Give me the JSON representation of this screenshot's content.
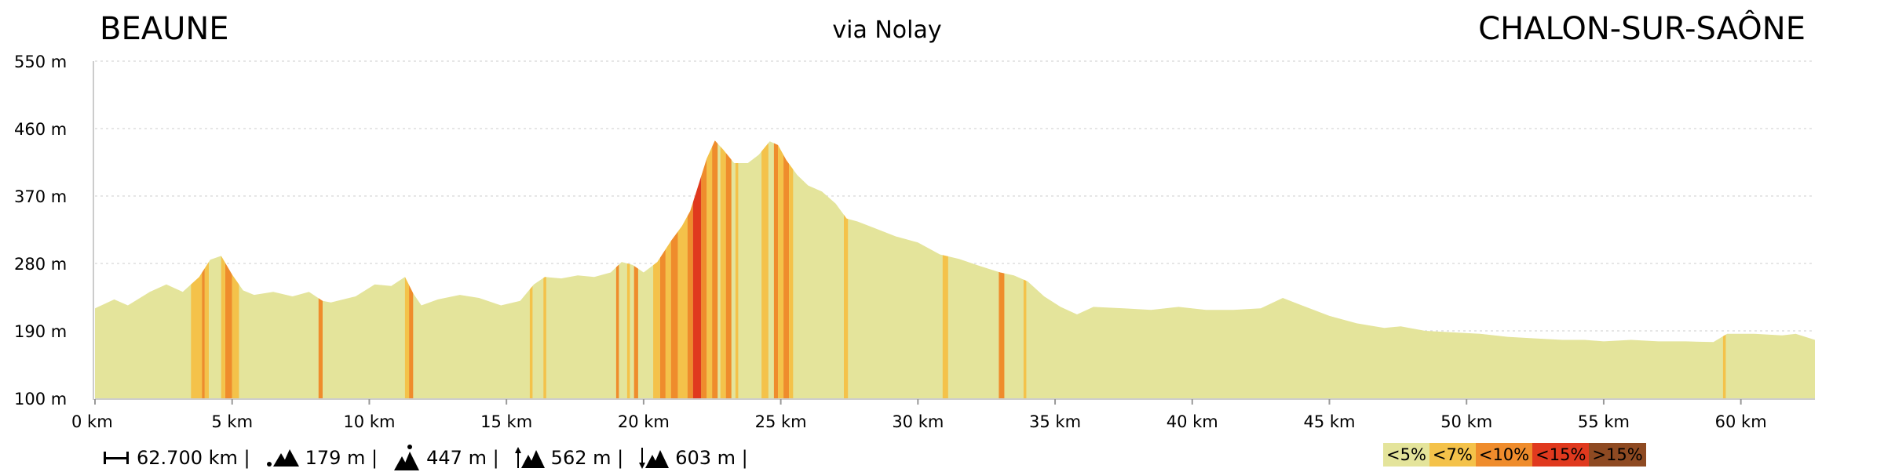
{
  "header": {
    "start_label": "BEAUNE",
    "via_label": "via Nolay",
    "end_label": "CHALON-SUR-SAÔNE"
  },
  "stats": {
    "distance": "62.700 km |",
    "min_altitude": "179 m |",
    "max_altitude": "447 m |",
    "ascent": "562 m |",
    "descent": "603 m |",
    "icons": [
      "distance-icon",
      "min-altitude-icon",
      "max-altitude-icon",
      "ascent-icon",
      "descent-icon"
    ]
  },
  "legend": {
    "items": [
      {
        "label": "<5%",
        "color": "#e4e49b"
      },
      {
        "label": "<7%",
        "color": "#f4c24a"
      },
      {
        "label": "<10%",
        "color": "#ef8c2c"
      },
      {
        "label": "<15%",
        "color": "#e0391e"
      },
      {
        "label": ">15%",
        "color": "#8e4a22"
      }
    ]
  },
  "chart_data": {
    "type": "area",
    "title": "",
    "xlabel": "",
    "ylabel": "",
    "xlim": [
      0,
      62.7
    ],
    "ylim": [
      100,
      550
    ],
    "x_ticks": [
      0,
      5,
      10,
      15,
      20,
      25,
      30,
      35,
      40,
      45,
      50,
      55,
      60
    ],
    "x_tick_labels": [
      "0 km",
      "5 km",
      "10 km",
      "15 km",
      "20 km",
      "25 km",
      "30 km",
      "35 km",
      "40 km",
      "45 km",
      "50 km",
      "55 km",
      "60 km"
    ],
    "y_ticks": [
      100,
      190,
      280,
      370,
      460,
      550
    ],
    "y_tick_labels": [
      "100 m",
      "190 m",
      "280 m",
      "370 m",
      "460 m",
      "550 m"
    ],
    "grid": true,
    "base_color": "#e4e49b",
    "profile": {
      "x": [
        0,
        0.7,
        1.2,
        2.0,
        2.6,
        3.2,
        3.8,
        4.2,
        4.6,
        5.0,
        5.4,
        5.8,
        6.5,
        7.2,
        7.8,
        8.3,
        8.6,
        9.5,
        10.2,
        10.8,
        11.3,
        11.6,
        11.9,
        12.5,
        13.3,
        14.0,
        14.8,
        15.5,
        16.0,
        16.4,
        17.0,
        17.6,
        18.2,
        18.8,
        19.2,
        19.6,
        20.0,
        20.5,
        21.0,
        21.4,
        21.7,
        22.0,
        22.3,
        22.6,
        22.9,
        23.3,
        23.8,
        24.2,
        24.6,
        24.9,
        25.2,
        25.6,
        26.0,
        26.5,
        27.0,
        27.4,
        27.8,
        28.5,
        29.2,
        30.0,
        30.8,
        31.5,
        32.3,
        33.0,
        33.5,
        34.0,
        34.6,
        35.2,
        35.8,
        36.4,
        37.5,
        38.5,
        39.5,
        40.5,
        41.5,
        42.5,
        43.3,
        44.0,
        45.0,
        46.0,
        47.0,
        47.6,
        48.5,
        49.5,
        50.5,
        51.5,
        52.5,
        53.5,
        54.3,
        55.0,
        56.0,
        57.0,
        58.0,
        59.0,
        59.5,
        60.5,
        61.5,
        62.0,
        62.7
      ],
      "y": [
        220,
        232,
        224,
        242,
        252,
        242,
        262,
        285,
        290,
        265,
        244,
        238,
        242,
        236,
        242,
        230,
        228,
        236,
        252,
        250,
        262,
        240,
        224,
        232,
        238,
        234,
        224,
        230,
        252,
        262,
        260,
        264,
        262,
        268,
        282,
        278,
        268,
        282,
        310,
        330,
        350,
        385,
        420,
        444,
        432,
        414,
        414,
        425,
        443,
        438,
        418,
        398,
        384,
        376,
        360,
        340,
        336,
        326,
        316,
        308,
        292,
        286,
        276,
        268,
        264,
        256,
        236,
        222,
        212,
        222,
        220,
        218,
        222,
        218,
        218,
        220,
        234,
        224,
        210,
        200,
        194,
        196,
        190,
        188,
        186,
        182,
        180,
        178,
        178,
        176,
        178,
        176,
        176,
        175,
        186,
        186,
        184,
        186,
        178
      ]
    },
    "grade_bands": [
      {
        "from": 3.5,
        "to": 3.9,
        "class": "<7%"
      },
      {
        "from": 3.9,
        "to": 4.0,
        "class": "<10%"
      },
      {
        "from": 4.0,
        "to": 4.15,
        "class": "<7%"
      },
      {
        "from": 4.6,
        "to": 4.75,
        "class": "<7%"
      },
      {
        "from": 4.75,
        "to": 5.0,
        "class": "<10%"
      },
      {
        "from": 5.0,
        "to": 5.25,
        "class": "<7%"
      },
      {
        "from": 8.15,
        "to": 8.3,
        "class": "<10%"
      },
      {
        "from": 11.3,
        "to": 11.45,
        "class": "<7%"
      },
      {
        "from": 11.45,
        "to": 11.6,
        "class": "<10%"
      },
      {
        "from": 15.85,
        "to": 15.95,
        "class": "<7%"
      },
      {
        "from": 16.35,
        "to": 16.45,
        "class": "<7%"
      },
      {
        "from": 19.0,
        "to": 19.1,
        "class": "<10%"
      },
      {
        "from": 19.4,
        "to": 19.5,
        "class": "<7%"
      },
      {
        "from": 19.65,
        "to": 19.8,
        "class": "<10%"
      },
      {
        "from": 20.35,
        "to": 20.6,
        "class": "<7%"
      },
      {
        "from": 20.6,
        "to": 20.8,
        "class": "<10%"
      },
      {
        "from": 20.8,
        "to": 21.0,
        "class": "<7%"
      },
      {
        "from": 21.0,
        "to": 21.25,
        "class": "<10%"
      },
      {
        "from": 21.25,
        "to": 21.6,
        "class": "<7%"
      },
      {
        "from": 21.6,
        "to": 21.8,
        "class": "<10%"
      },
      {
        "from": 21.8,
        "to": 22.1,
        "class": "<15%"
      },
      {
        "from": 22.1,
        "to": 22.3,
        "class": "<10%"
      },
      {
        "from": 22.3,
        "to": 22.5,
        "class": "<7%"
      },
      {
        "from": 22.5,
        "to": 22.7,
        "class": "<10%"
      },
      {
        "from": 22.8,
        "to": 23.0,
        "class": "<7%"
      },
      {
        "from": 23.0,
        "to": 23.2,
        "class": "<10%"
      },
      {
        "from": 23.35,
        "to": 23.45,
        "class": "<7%"
      },
      {
        "from": 24.3,
        "to": 24.55,
        "class": "<7%"
      },
      {
        "from": 24.75,
        "to": 24.9,
        "class": "<10%"
      },
      {
        "from": 24.9,
        "to": 25.1,
        "class": "<7%"
      },
      {
        "from": 25.1,
        "to": 25.3,
        "class": "<10%"
      },
      {
        "from": 25.3,
        "to": 25.45,
        "class": "<7%"
      },
      {
        "from": 27.3,
        "to": 27.45,
        "class": "<7%"
      },
      {
        "from": 30.9,
        "to": 31.1,
        "class": "<7%"
      },
      {
        "from": 32.95,
        "to": 33.15,
        "class": "<10%"
      },
      {
        "from": 33.85,
        "to": 33.95,
        "class": "<7%"
      },
      {
        "from": 59.35,
        "to": 59.45,
        "class": "<7%"
      }
    ]
  }
}
